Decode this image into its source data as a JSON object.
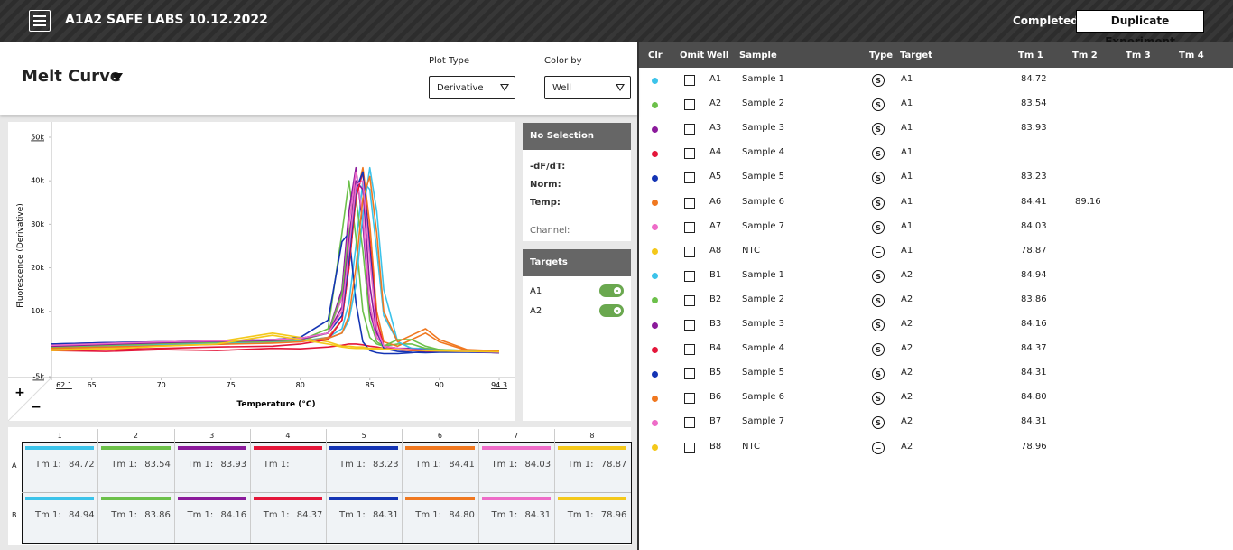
{
  "header": {
    "title": "A1A2 SAFE LABS 10.12.2022",
    "status": "Completed",
    "duplicate_button": "Duplicate Experiment"
  },
  "plot_controls": {
    "title": "Melt Curve",
    "plot_type_label": "Plot Type",
    "plot_type": "Derivative",
    "color_by_label": "Color by",
    "color_by": "Well"
  },
  "chart_tools": {
    "zoom_in": "+",
    "zoom_out": "−"
  },
  "chart_data": {
    "type": "line",
    "y_label": "Fluorescence (Derivative)",
    "x_label": "Temperature (°C)",
    "xlim": [
      62.1,
      94.3
    ],
    "xticks": [
      62.1,
      65,
      70,
      75,
      80,
      85,
      90,
      94.3
    ],
    "ylim": [
      -5000,
      50000
    ],
    "yticks": [
      {
        "value": -5000,
        "label": "-5k"
      },
      {
        "value": 10000,
        "label": "10k"
      },
      {
        "value": 20000,
        "label": "20k"
      },
      {
        "value": 30000,
        "label": "30k"
      },
      {
        "value": 40000,
        "label": "40k"
      },
      {
        "value": 50000,
        "label": "50k"
      }
    ],
    "x": [
      62.1,
      66,
      70,
      74,
      78,
      80,
      82,
      83,
      83.5,
      84,
      84.5,
      85,
      85.5,
      86,
      87,
      88,
      89,
      90,
      92,
      94.3
    ],
    "series": [
      {
        "color": "#3cc3ea",
        "values": [
          1500,
          2000,
          2500,
          2800,
          3000,
          3200,
          4000,
          6000,
          12000,
          25000,
          40000,
          38000,
          24000,
          9000,
          3000,
          1500,
          1500,
          1200,
          1000,
          500
        ]
      },
      {
        "color": "#6cc04a",
        "values": [
          1800,
          2200,
          2600,
          2800,
          3000,
          3300,
          6000,
          28000,
          40000,
          27000,
          10000,
          4000,
          2500,
          2000,
          2500,
          2500,
          1500,
          1200,
          1000,
          800
        ]
      },
      {
        "color": "#8b1a9b",
        "values": [
          2000,
          2500,
          2800,
          3000,
          3200,
          3500,
          5000,
          15000,
          33000,
          43000,
          30000,
          10000,
          4000,
          2000,
          1500,
          1500,
          1200,
          1000,
          800,
          600
        ]
      },
      {
        "color": "#e4163a",
        "values": [
          1000,
          800,
          1200,
          1000,
          1500,
          1400,
          1800,
          2200,
          2500,
          2500,
          2300,
          2000,
          1800,
          1500,
          1200,
          1000,
          900,
          800,
          700,
          500
        ]
      },
      {
        "color": "#1434b4",
        "values": [
          2500,
          2800,
          3000,
          3200,
          3500,
          4000,
          8000,
          26000,
          28000,
          12000,
          3000,
          1000,
          500,
          300,
          300,
          500,
          800,
          800,
          700,
          500
        ]
      },
      {
        "color": "#f07820",
        "values": [
          1500,
          2000,
          2200,
          2500,
          2800,
          3000,
          4000,
          8000,
          20000,
          36000,
          43000,
          30000,
          10000,
          3000,
          2000,
          3500,
          5000,
          3000,
          1000,
          800
        ]
      },
      {
        "color": "#ee6cc8",
        "values": [
          2200,
          2600,
          3000,
          3200,
          3500,
          3800,
          5000,
          13000,
          30000,
          42000,
          32000,
          12000,
          4000,
          2000,
          1500,
          1200,
          1000,
          900,
          800,
          600
        ]
      },
      {
        "color": "#f4c81a",
        "values": [
          1200,
          1500,
          2500,
          3000,
          5000,
          4000,
          3000,
          2000,
          2000,
          1800,
          1800,
          1500,
          1500,
          1500,
          1200,
          1200,
          1000,
          1000,
          900,
          800
        ]
      },
      {
        "color": "#3cc3ea",
        "values": [
          1500,
          2000,
          2400,
          2700,
          3000,
          3200,
          3800,
          5000,
          8000,
          16000,
          32000,
          43000,
          33000,
          15000,
          3000,
          1500,
          1200,
          1000,
          900,
          600
        ]
      },
      {
        "color": "#6cc04a",
        "values": [
          1800,
          2200,
          2600,
          2900,
          3100,
          3400,
          5000,
          14000,
          28000,
          36000,
          24000,
          8000,
          3000,
          2000,
          3500,
          3500,
          2000,
          1200,
          900,
          700
        ]
      },
      {
        "color": "#8b1a9b",
        "values": [
          2000,
          2400,
          2800,
          3100,
          3300,
          3600,
          5000,
          11000,
          26000,
          40000,
          38000,
          16000,
          5000,
          2000,
          1500,
          1300,
          1100,
          1000,
          800,
          600
        ]
      },
      {
        "color": "#e4163a",
        "values": [
          1000,
          1200,
          1500,
          1800,
          2000,
          2500,
          3500,
          8000,
          20000,
          36000,
          42000,
          26000,
          8000,
          2000,
          1200,
          1000,
          900,
          800,
          700,
          500
        ]
      },
      {
        "color": "#1434b4",
        "values": [
          2500,
          2800,
          3000,
          3200,
          3500,
          3800,
          5000,
          9000,
          22000,
          38000,
          42000,
          24000,
          6000,
          1500,
          800,
          600,
          500,
          600,
          600,
          500
        ]
      },
      {
        "color": "#f07820",
        "values": [
          1500,
          1800,
          2100,
          2400,
          2700,
          3000,
          3800,
          5000,
          9000,
          20000,
          36000,
          41000,
          28000,
          10000,
          3000,
          4500,
          6000,
          3500,
          1200,
          900
        ]
      },
      {
        "color": "#ee6cc8",
        "values": [
          2200,
          2600,
          3000,
          3200,
          3500,
          3800,
          5000,
          10000,
          24000,
          39000,
          40000,
          22000,
          6000,
          2000,
          1500,
          1200,
          1000,
          900,
          800,
          600
        ]
      },
      {
        "color": "#f4c81a",
        "values": [
          1000,
          1300,
          2000,
          2500,
          4500,
          3500,
          2500,
          1800,
          1600,
          1500,
          1500,
          1400,
          1400,
          1300,
          1200,
          1100,
          1000,
          900,
          800,
          700
        ]
      }
    ]
  },
  "selection_panel": {
    "title": "No Selection",
    "fields": [
      "-dF/dT:",
      "Norm:",
      "Temp:"
    ],
    "channel": "Channel:"
  },
  "targets_panel": {
    "title": "Targets",
    "targets": [
      {
        "name": "A1",
        "enabled": true
      },
      {
        "name": "A2",
        "enabled": true
      }
    ]
  },
  "plate": {
    "columns": [
      1,
      2,
      3,
      4,
      5,
      6,
      7,
      8
    ],
    "rows": [
      "A",
      "B"
    ],
    "cell_label": "Tm 1:"
  },
  "wells": {
    "columns": [
      "Clr",
      "Omit",
      "Well",
      "Sample",
      "Type",
      "Target",
      "Tm 1",
      "Tm 2",
      "Tm 3",
      "Tm 4"
    ],
    "rows": [
      {
        "omit": false,
        "well": "A1",
        "sample": "Sample 1",
        "type": "S",
        "target": "A1",
        "tm1": "84.72",
        "tm2": null
      },
      {
        "omit": false,
        "well": "A2",
        "sample": "Sample 2",
        "type": "S",
        "target": "A1",
        "tm1": "83.54",
        "tm2": null
      },
      {
        "omit": false,
        "well": "A3",
        "sample": "Sample 3",
        "type": "S",
        "target": "A1",
        "tm1": "83.93",
        "tm2": null
      },
      {
        "omit": false,
        "well": "A4",
        "sample": "Sample 4",
        "type": "S",
        "target": "A1",
        "tm1": null,
        "tm2": null
      },
      {
        "omit": false,
        "well": "A5",
        "sample": "Sample 5",
        "type": "S",
        "target": "A1",
        "tm1": "83.23",
        "tm2": null
      },
      {
        "omit": false,
        "well": "A6",
        "sample": "Sample 6",
        "type": "S",
        "target": "A1",
        "tm1": "84.41",
        "tm2": "89.16"
      },
      {
        "omit": false,
        "well": "A7",
        "sample": "Sample 7",
        "type": "S",
        "target": "A1",
        "tm1": "84.03",
        "tm2": null
      },
      {
        "omit": false,
        "well": "A8",
        "sample": "NTC",
        "type": "−",
        "target": "A1",
        "tm1": "78.87",
        "tm2": null
      },
      {
        "omit": false,
        "well": "B1",
        "sample": "Sample 1",
        "type": "S",
        "target": "A2",
        "tm1": "84.94",
        "tm2": null
      },
      {
        "omit": false,
        "well": "B2",
        "sample": "Sample 2",
        "type": "S",
        "target": "A2",
        "tm1": "83.86",
        "tm2": null
      },
      {
        "omit": false,
        "well": "B3",
        "sample": "Sample 3",
        "type": "S",
        "target": "A2",
        "tm1": "84.16",
        "tm2": null
      },
      {
        "omit": false,
        "well": "B4",
        "sample": "Sample 4",
        "type": "S",
        "target": "A2",
        "tm1": "84.37",
        "tm2": null
      },
      {
        "omit": false,
        "well": "B5",
        "sample": "Sample 5",
        "type": "S",
        "target": "A2",
        "tm1": "84.31",
        "tm2": null
      },
      {
        "omit": false,
        "well": "B6",
        "sample": "Sample 6",
        "type": "S",
        "target": "A2",
        "tm1": "84.80",
        "tm2": null
      },
      {
        "omit": false,
        "well": "B7",
        "sample": "Sample 7",
        "type": "S",
        "target": "A2",
        "tm1": "84.31",
        "tm2": null
      },
      {
        "omit": false,
        "well": "B8",
        "sample": "NTC",
        "type": "−",
        "target": "A2",
        "tm1": "78.96",
        "tm2": null
      }
    ]
  }
}
